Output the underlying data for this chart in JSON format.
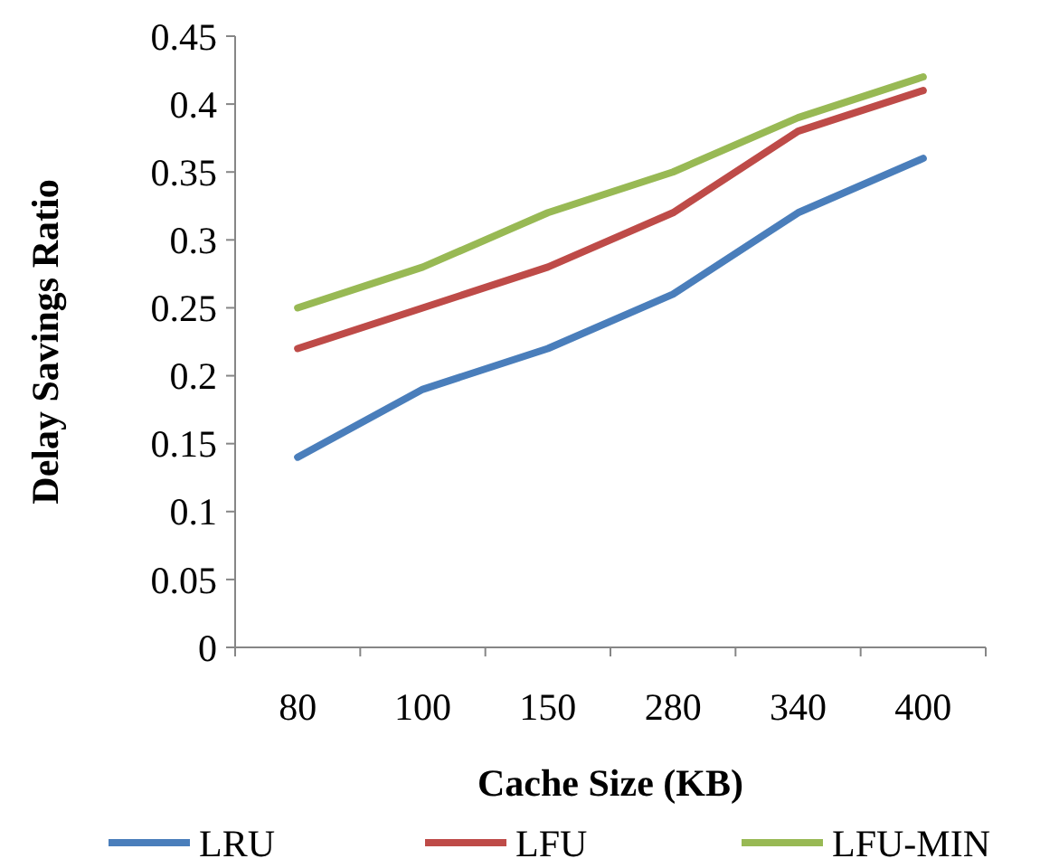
{
  "chart_data": {
    "type": "line",
    "xlabel": "Cache Size (KB)",
    "ylabel": "Delay Savings Ratio",
    "categories": [
      "80",
      "100",
      "150",
      "280",
      "340",
      "400"
    ],
    "series": [
      {
        "name": "LRU",
        "color": "#4a7ebb",
        "values": [
          0.14,
          0.19,
          0.22,
          0.26,
          0.32,
          0.36
        ]
      },
      {
        "name": "LFU",
        "color": "#be4b48",
        "values": [
          0.22,
          0.25,
          0.28,
          0.32,
          0.38,
          0.41
        ]
      },
      {
        "name": "LFU-MIN",
        "color": "#98b954",
        "values": [
          0.25,
          0.28,
          0.32,
          0.35,
          0.39,
          0.42
        ]
      }
    ],
    "ylim": [
      0,
      0.45
    ],
    "yticks": [
      0,
      0.05,
      0.1,
      0.15,
      0.2,
      0.25,
      0.3,
      0.35,
      0.4,
      0.45
    ],
    "grid": false,
    "legend": "bottom",
    "marker": "none",
    "line_style": "solid"
  }
}
